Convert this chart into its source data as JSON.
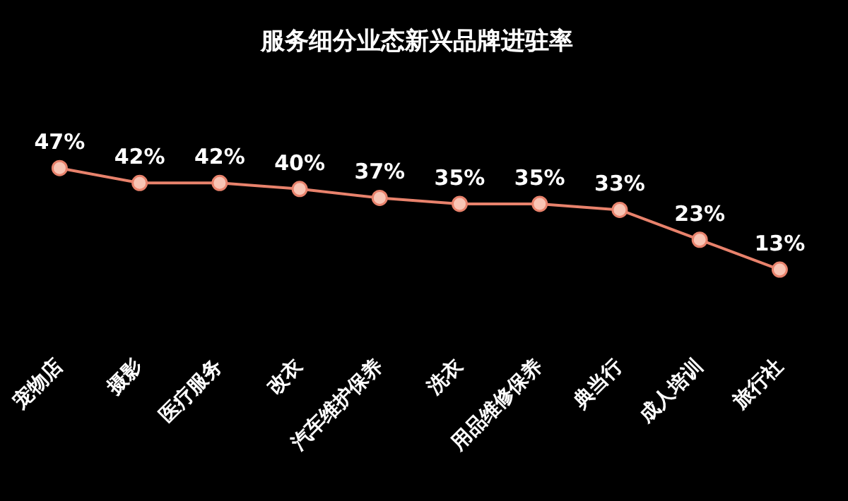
{
  "chart_data": {
    "type": "line",
    "title": "服务细分业态新兴品牌进驻率",
    "categories": [
      "宠物店",
      "摄影",
      "医疗服务",
      "改衣",
      "汽车维护保养",
      "洗衣",
      "用品维修保养",
      "典当行",
      "成人培训",
      "旅行社"
    ],
    "series": [
      {
        "color": "#e8826c",
        "values": [
          47,
          42,
          42,
          40,
          37,
          35,
          35,
          33,
          23,
          13
        ],
        "value_labels": [
          "47%",
          "42%",
          "42%",
          "40%",
          "37%",
          "35%",
          "35%",
          "33%",
          "23%",
          "13%"
        ]
      }
    ],
    "marker": "circle",
    "grid": false,
    "legend": false
  }
}
